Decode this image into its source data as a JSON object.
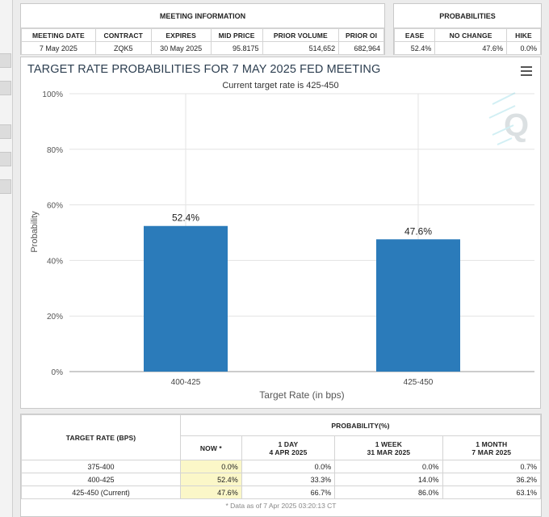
{
  "meeting_info": {
    "title": "MEETING INFORMATION",
    "headers": [
      "MEETING DATE",
      "CONTRACT",
      "EXPIRES",
      "MID PRICE",
      "PRIOR VOLUME",
      "PRIOR OI"
    ],
    "values": [
      "7 May 2025",
      "ZQK5",
      "30 May 2025",
      "95.8175",
      "514,652",
      "682,964"
    ]
  },
  "probabilities": {
    "title": "PROBABILITIES",
    "headers": [
      "EASE",
      "NO CHANGE",
      "HIKE"
    ],
    "values": [
      "52.4%",
      "47.6%",
      "0.0%"
    ]
  },
  "chart": {
    "menu_icon": "hamburger-menu-icon",
    "watermark_icon": "q-logo-watermark"
  },
  "chart_data": {
    "type": "bar",
    "title": "TARGET RATE PROBABILITIES FOR 7 MAY 2025 FED MEETING",
    "subtitle": "Current target rate is 425-450",
    "xlabel": "Target Rate (in bps)",
    "ylabel": "Probability",
    "categories": [
      "400-425",
      "425-450"
    ],
    "values": [
      52.4,
      47.6
    ],
    "data_labels": [
      "52.4%",
      "47.6%"
    ],
    "ylim": [
      0,
      100
    ],
    "yticks": [
      "0%",
      "20%",
      "40%",
      "60%",
      "80%",
      "100%"
    ],
    "bar_color": "#2b7bba",
    "grid": true
  },
  "history_table": {
    "col_target": "TARGET RATE (BPS)",
    "col_prob": "PROBABILITY(%)",
    "sub_headers": [
      {
        "l1": "NOW *",
        "l2": ""
      },
      {
        "l1": "1 DAY",
        "l2": "4 APR 2025"
      },
      {
        "l1": "1 WEEK",
        "l2": "31 MAR 2025"
      },
      {
        "l1": "1 MONTH",
        "l2": "7 MAR 2025"
      }
    ],
    "rows": [
      {
        "rate": "375-400",
        "now": "0.0%",
        "day": "0.0%",
        "week": "0.0%",
        "month": "0.7%"
      },
      {
        "rate": "400-425",
        "now": "52.4%",
        "day": "33.3%",
        "week": "14.0%",
        "month": "36.2%"
      },
      {
        "rate": "425-450 (Current)",
        "now": "47.6%",
        "day": "66.7%",
        "week": "86.0%",
        "month": "63.1%"
      }
    ],
    "footnote": "* Data as of 7 Apr 2025 03:20:13 CT"
  }
}
